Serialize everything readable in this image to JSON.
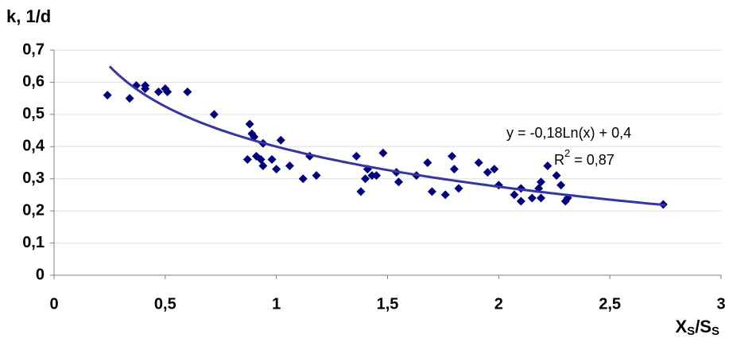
{
  "chart_data": {
    "type": "scatter",
    "y_label": "k, 1/d",
    "x_label": [
      "X",
      "S",
      "/S",
      "S"
    ],
    "color": "#00007f",
    "x": [
      0.24,
      0.34,
      0.37,
      0.41,
      0.41,
      0.47,
      0.5,
      0.51,
      0.6,
      0.72,
      0.88,
      0.89,
      0.9,
      0.87,
      0.91,
      0.93,
      0.94,
      0.94,
      0.98,
      1.0,
      1.02,
      1.06,
      1.12,
      1.15,
      1.18,
      1.36,
      1.38,
      1.4,
      1.41,
      1.43,
      1.45,
      1.48,
      1.54,
      1.55,
      1.63,
      1.68,
      1.7,
      1.76,
      1.79,
      1.8,
      1.82,
      1.91,
      1.95,
      1.98,
      2.0,
      2.07,
      2.1,
      2.1,
      2.15,
      2.18,
      2.19,
      2.19,
      2.22,
      2.26,
      2.28,
      2.3,
      2.31,
      2.74
    ],
    "values": [
      0.56,
      0.55,
      0.59,
      0.59,
      0.58,
      0.57,
      0.58,
      0.57,
      0.57,
      0.5,
      0.47,
      0.44,
      0.43,
      0.36,
      0.37,
      0.36,
      0.41,
      0.34,
      0.36,
      0.33,
      0.42,
      0.34,
      0.3,
      0.37,
      0.31,
      0.37,
      0.26,
      0.3,
      0.33,
      0.31,
      0.31,
      0.38,
      0.32,
      0.29,
      0.31,
      0.35,
      0.26,
      0.25,
      0.37,
      0.33,
      0.27,
      0.35,
      0.32,
      0.33,
      0.28,
      0.25,
      0.23,
      0.27,
      0.24,
      0.27,
      0.29,
      0.24,
      0.34,
      0.31,
      0.28,
      0.23,
      0.24,
      0.22
    ],
    "trendline": {
      "a": -0.18,
      "b": 0.4,
      "x_range": [
        0.25,
        2.75
      ],
      "color": "#3535a8"
    },
    "equation": "y = -0,18Ln(x) + 0,4",
    "r_squared": [
      "R",
      "2",
      " = 0,87"
    ],
    "xlim": [
      0,
      3
    ],
    "ylim": [
      0,
      0.7
    ],
    "xticks": [
      0,
      {
        "value": 0.5,
        "label": "0,5"
      },
      1,
      {
        "value": 1.5,
        "label": "1,5"
      },
      2,
      {
        "value": 2.5,
        "label": "2,5"
      },
      3
    ],
    "yticks": [
      0,
      {
        "value": 0.1,
        "label": "0,1"
      },
      {
        "value": 0.2,
        "label": "0,2"
      },
      {
        "value": 0.3,
        "label": "0,3"
      },
      {
        "value": 0.4,
        "label": "0,4"
      },
      {
        "value": 0.5,
        "label": "0,5"
      },
      {
        "value": 0.6,
        "label": "0,6"
      },
      {
        "value": 0.7,
        "label": "0,7"
      }
    ],
    "grid": true
  }
}
